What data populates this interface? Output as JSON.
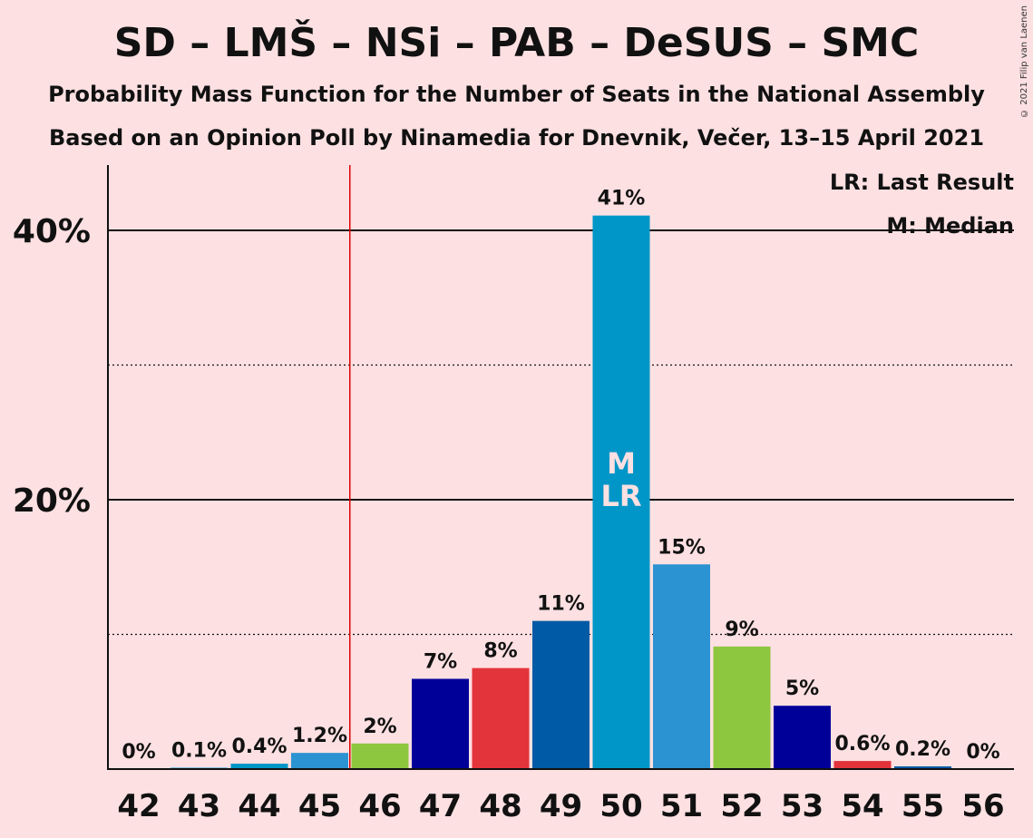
{
  "title": "SD – LMŠ – NSi – PAB – DeSUS – SMC",
  "subtitle1": "Probability Mass Function for the Number of Seats in the National Assembly",
  "subtitle2": "Based on an Opinion Poll by Ninamedia for Dnevnik, Večer, 13–15 April 2021",
  "copyright": "© 2021 Filip van Laenen",
  "legend": {
    "lr": "LR: Last Result",
    "m": "M: Median"
  },
  "chart_data": {
    "type": "bar",
    "categories": [
      "42",
      "43",
      "44",
      "45",
      "46",
      "47",
      "48",
      "49",
      "50",
      "51",
      "52",
      "53",
      "54",
      "55",
      "56"
    ],
    "values": [
      0,
      0.1,
      0.4,
      1.2,
      1.9,
      6.7,
      7.5,
      11,
      41.1,
      15.2,
      9.1,
      4.7,
      0.6,
      0.2,
      0
    ],
    "labels": [
      "0%",
      "0.1%",
      "0.4%",
      "1.2%",
      "2%",
      "7%",
      "8%",
      "11%",
      "41%",
      "15%",
      "9%",
      "5%",
      "0.6%",
      "0.2%",
      "0%"
    ],
    "colors": [
      "#0096c8",
      "#0096c8",
      "#0096c8",
      "#2b93d1",
      "#8dc63f",
      "#000099",
      "#e3333b",
      "#005aa6",
      "#0096c8",
      "#2b93d1",
      "#8dc63f",
      "#000099",
      "#e3333b",
      "#005aa6",
      "#0096c8"
    ],
    "ylim": [
      0,
      45
    ],
    "major_ticks": [
      20,
      40
    ],
    "major_tick_labels": [
      "20%",
      "40%"
    ],
    "minor_ticks": [
      10,
      30
    ],
    "last_result_seats": 45.5,
    "median_category": "50",
    "last_result_category": "50",
    "median_label": "M",
    "last_result_label": "LR"
  }
}
